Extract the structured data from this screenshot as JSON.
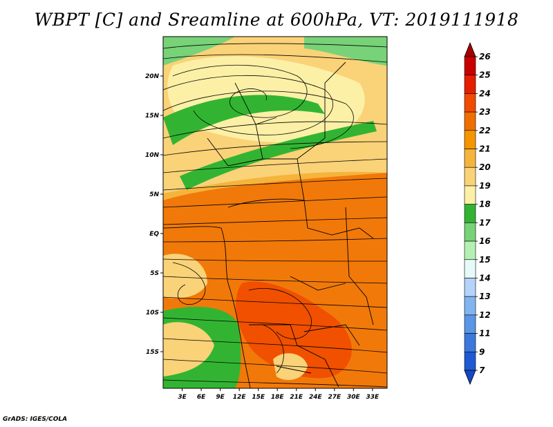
{
  "title": "WBPT [C] and Sreamline at 600hPa, VT: 2019111918",
  "credit": "GrADS: IGES/COLA",
  "map": {
    "lat_ticks": [
      {
        "lat": 20,
        "label": "20N"
      },
      {
        "lat": 15,
        "label": "15N"
      },
      {
        "lat": 10,
        "label": "10N"
      },
      {
        "lat": 5,
        "label": "5N"
      },
      {
        "lat": 0,
        "label": "EQ"
      },
      {
        "lat": -5,
        "label": "5S"
      },
      {
        "lat": -10,
        "label": "10S"
      },
      {
        "lat": -15,
        "label": "15S"
      }
    ],
    "lon_ticks": [
      {
        "lon": 3,
        "label": "3E"
      },
      {
        "lon": 6,
        "label": "6E"
      },
      {
        "lon": 9,
        "label": "9E"
      },
      {
        "lon": 12,
        "label": "12E"
      },
      {
        "lon": 15,
        "label": "15E"
      },
      {
        "lon": 18,
        "label": "18E"
      },
      {
        "lon": 21,
        "label": "21E"
      },
      {
        "lon": 24,
        "label": "24E"
      },
      {
        "lon": 27,
        "label": "27E"
      },
      {
        "lon": 30,
        "label": "30E"
      },
      {
        "lon": 33,
        "label": "33E"
      }
    ]
  },
  "colorbar": {
    "levels": [
      {
        "label": "26",
        "color": "#a50000"
      },
      {
        "label": "25",
        "color": "#c80000"
      },
      {
        "label": "24",
        "color": "#e61e00"
      },
      {
        "label": "23",
        "color": "#f04b00"
      },
      {
        "label": "22",
        "color": "#f06e00"
      },
      {
        "label": "21",
        "color": "#f59600"
      },
      {
        "label": "20",
        "color": "#f5b43c"
      },
      {
        "label": "19",
        "color": "#fad278"
      },
      {
        "label": "18",
        "color": "#fcf0a6"
      },
      {
        "label": "17",
        "color": "#32b432"
      },
      {
        "label": "16",
        "color": "#78d278"
      },
      {
        "label": "15",
        "color": "#b4f0b4"
      },
      {
        "label": "14",
        "color": "#e6fafa"
      },
      {
        "label": "13",
        "color": "#b4d2fa"
      },
      {
        "label": "12",
        "color": "#82b4f0"
      },
      {
        "label": "11",
        "color": "#5a96e6"
      },
      {
        "label": "9",
        "color": "#3c78dc"
      },
      {
        "label": "7",
        "color": "#1e5ad2"
      }
    ],
    "under_color": "#1446c8"
  }
}
